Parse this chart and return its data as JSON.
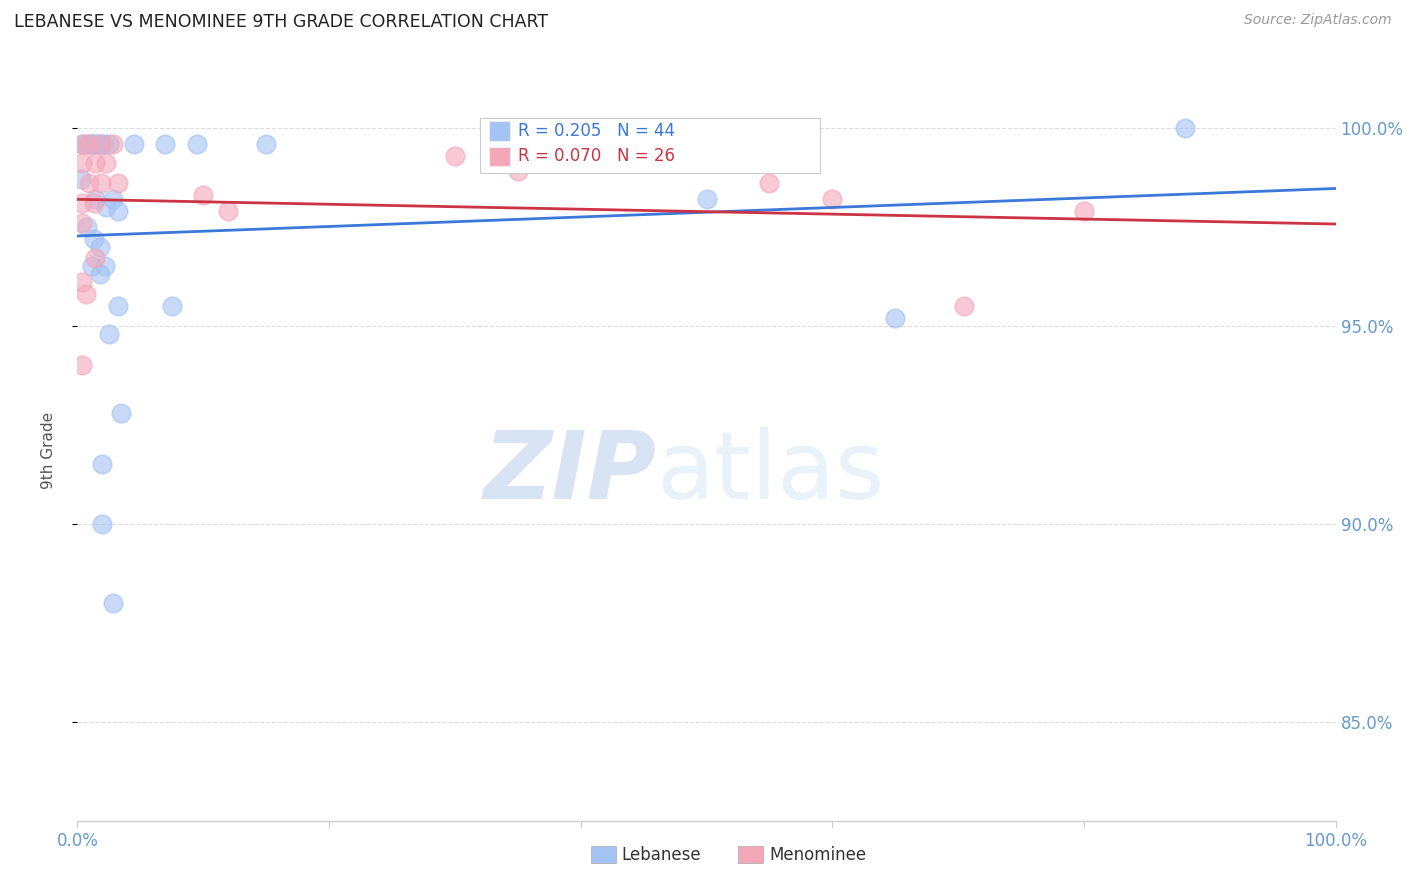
{
  "title": "LEBANESE VS MENOMINEE 9TH GRADE CORRELATION CHART",
  "source": "Source: ZipAtlas.com",
  "ylabel_label": "9th Grade",
  "legend_blue_label": "Lebanese",
  "legend_pink_label": "Menominee",
  "R_blue": 0.205,
  "N_blue": 44,
  "R_pink": 0.07,
  "N_pink": 26,
  "blue_color": "#a4c2f4",
  "pink_color": "#f4a7b9",
  "blue_line_color": "#3c78d8",
  "pink_line_color": "#cc3344",
  "blue_scatter": [
    [
      0.4,
      99.6
    ],
    [
      0.7,
      99.6
    ],
    [
      0.9,
      99.6
    ],
    [
      1.1,
      99.6
    ],
    [
      1.3,
      99.6
    ],
    [
      1.5,
      99.6
    ],
    [
      1.7,
      99.6
    ],
    [
      1.9,
      99.6
    ],
    [
      2.1,
      99.6
    ],
    [
      2.5,
      99.6
    ],
    [
      4.5,
      99.6
    ],
    [
      7.0,
      99.6
    ],
    [
      9.5,
      99.6
    ],
    [
      15.0,
      99.6
    ],
    [
      0.3,
      98.7
    ],
    [
      1.4,
      98.2
    ],
    [
      2.3,
      98.0
    ],
    [
      2.8,
      98.2
    ],
    [
      3.2,
      97.9
    ],
    [
      0.8,
      97.5
    ],
    [
      1.3,
      97.2
    ],
    [
      1.8,
      97.0
    ],
    [
      1.2,
      96.5
    ],
    [
      1.8,
      96.3
    ],
    [
      2.2,
      96.5
    ],
    [
      3.2,
      95.5
    ],
    [
      7.5,
      95.5
    ],
    [
      2.5,
      94.8
    ],
    [
      3.5,
      92.8
    ],
    [
      2.0,
      91.5
    ],
    [
      2.0,
      90.0
    ],
    [
      2.8,
      88.0
    ],
    [
      50.0,
      98.2
    ],
    [
      65.0,
      95.2
    ],
    [
      88.0,
      100.0
    ]
  ],
  "pink_scatter": [
    [
      0.4,
      99.6
    ],
    [
      0.9,
      99.6
    ],
    [
      1.8,
      99.6
    ],
    [
      2.8,
      99.6
    ],
    [
      0.4,
      99.1
    ],
    [
      1.4,
      99.1
    ],
    [
      2.3,
      99.1
    ],
    [
      0.9,
      98.6
    ],
    [
      1.9,
      98.6
    ],
    [
      3.2,
      98.6
    ],
    [
      0.4,
      98.1
    ],
    [
      1.3,
      98.1
    ],
    [
      0.4,
      97.6
    ],
    [
      1.4,
      96.7
    ],
    [
      0.4,
      96.1
    ],
    [
      0.7,
      95.8
    ],
    [
      0.4,
      94.0
    ],
    [
      10.0,
      98.3
    ],
    [
      12.0,
      97.9
    ],
    [
      30.0,
      99.3
    ],
    [
      55.0,
      98.6
    ],
    [
      60.0,
      98.2
    ],
    [
      70.5,
      95.5
    ],
    [
      80.0,
      97.9
    ],
    [
      35.0,
      98.9
    ]
  ],
  "xlim": [
    0,
    100
  ],
  "ylim": [
    82.5,
    101.2
  ],
  "yticks": [
    85.0,
    90.0,
    95.0,
    100.0
  ],
  "xticks": [
    0,
    20,
    40,
    60,
    80,
    100
  ],
  "watermark_zip": "ZIP",
  "watermark_atlas": "atlas",
  "title_color": "#222222",
  "axis_label_color": "#6699cc",
  "tick_color": "#6699cc",
  "grid_color": "#dddddd",
  "spine_color": "#cccccc"
}
